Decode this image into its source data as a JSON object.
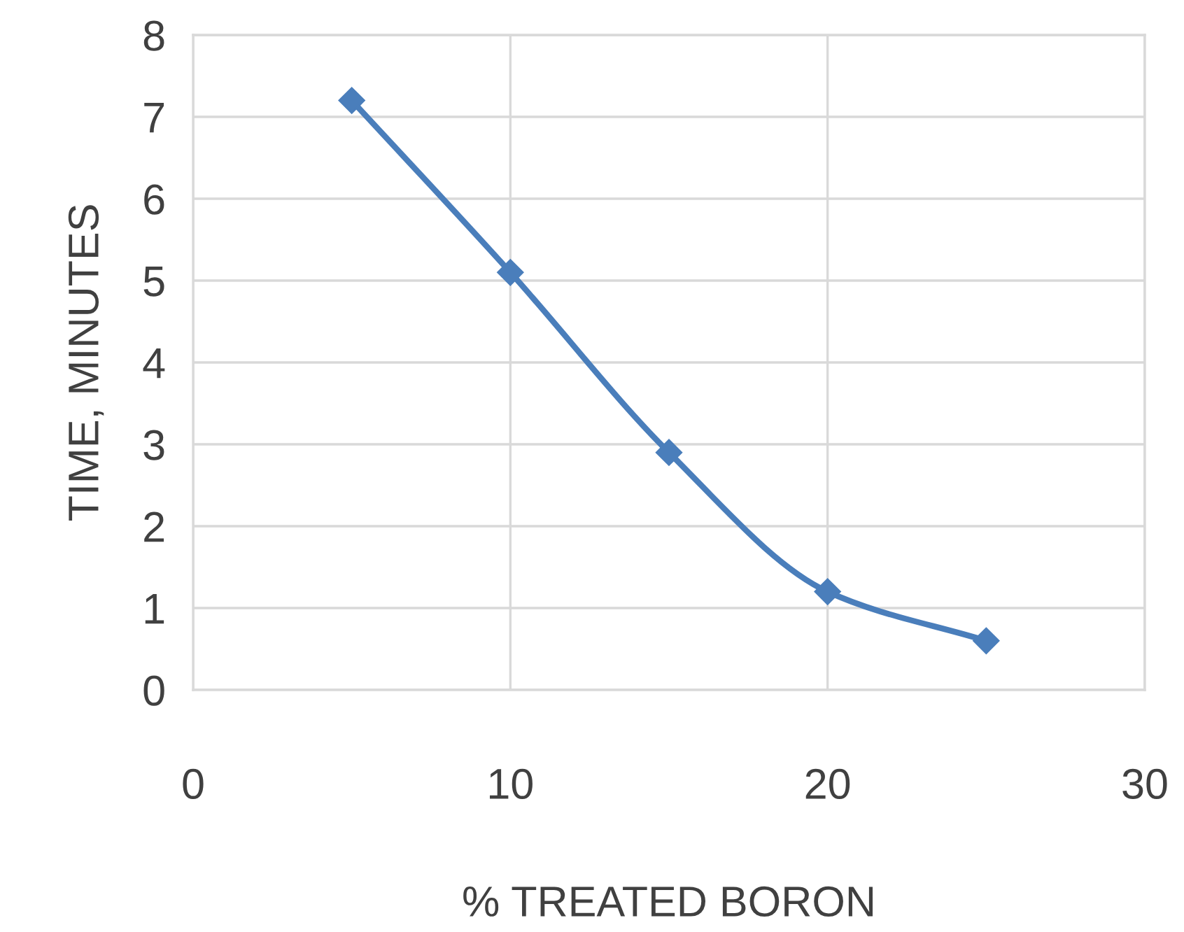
{
  "chart_data": {
    "type": "line",
    "xlabel": "% TREATED BORON",
    "ylabel": "TIME, MINUTES",
    "x": [
      5,
      10,
      15,
      20,
      25
    ],
    "series": [
      {
        "color": "#4a7ebb",
        "values": [
          7.2,
          5.1,
          2.9,
          1.2,
          0.6
        ]
      }
    ],
    "xlim": [
      0,
      30
    ],
    "xticks": [
      0,
      10,
      20,
      30
    ],
    "ylim": [
      0,
      8
    ],
    "yticks": [
      0,
      1,
      2,
      3,
      4,
      5,
      6,
      7,
      8
    ],
    "grid": true,
    "marker": "diamond",
    "line_style": "solid",
    "legend": false
  }
}
